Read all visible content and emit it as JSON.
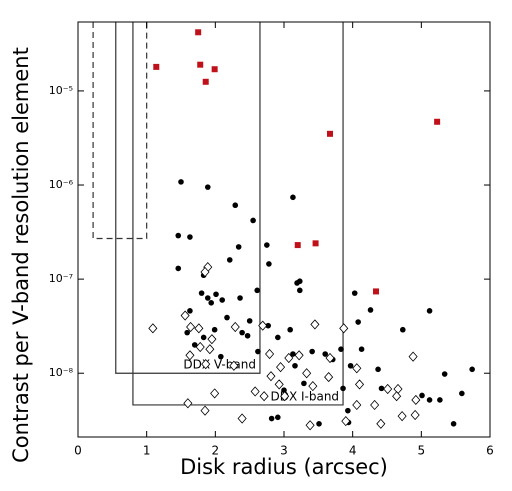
{
  "chart_data": {
    "type": "scatter",
    "xlabel": "Disk radius (arcsec)",
    "ylabel": "Contrast per V-band resolution element",
    "xlim": [
      0,
      6
    ],
    "xticks": [
      0,
      1,
      2,
      3,
      4,
      5,
      6
    ],
    "ylim": [
      2.1e-09,
      5.4e-05
    ],
    "yscale": "log",
    "yticks": [
      {
        "value": 1e-08,
        "label": "10⁻⁸"
      },
      {
        "value": 1e-07,
        "label": "10⁻⁷"
      },
      {
        "value": 1e-06,
        "label": "10⁻⁶"
      },
      {
        "value": 1e-05,
        "label": "10⁻⁵"
      }
    ],
    "regions": [
      {
        "x": [
          0.22,
          1.0
        ],
        "ybottom": 2.7e-07,
        "style": "dashed"
      },
      {
        "label": "DDX V-band",
        "x": [
          0.55,
          2.65
        ],
        "ybottom": 1e-08,
        "style": "solid"
      },
      {
        "label": "DDX I-band",
        "x": [
          0.8,
          3.86
        ],
        "ybottom": 4.6e-09,
        "style": "solid"
      }
    ],
    "series": [
      {
        "marker": "dot",
        "color": "#000000",
        "x": [
          1.5,
          1.89,
          3.13,
          2.29,
          2.55,
          1.46,
          1.63,
          2.34,
          2.75,
          1.46,
          2.21,
          2.78,
          1.83,
          3.19,
          3.23,
          4.03,
          1.8,
          2.01,
          1.89,
          2.1,
          2.36,
          2.61,
          3.23,
          1.63,
          1.94,
          5.12,
          4.26,
          2.17,
          2.5,
          2.77,
          1.99,
          2.39,
          4.08,
          1.83,
          2.91,
          2.47,
          3.09,
          4.73,
          1.59,
          1.7,
          2.62,
          4.13,
          3.41,
          3.6,
          3.83,
          3.13,
          2.08,
          3.71,
          3.16,
          3.97,
          4.37,
          5.74,
          5.34,
          3.29,
          3.86,
          5.01,
          3.0,
          5.59,
          4.42,
          5.27,
          5.12,
          3.93,
          2.82,
          2.91,
          3.51,
          5.47,
          3.94
        ],
        "values": [
          1.08e-06,
          9.5e-07,
          7.4e-07,
          6.1e-07,
          4.2e-07,
          2.9e-07,
          2.8e-07,
          2.2e-07,
          2.3e-07,
          1.3e-07,
          1.6e-07,
          1.45e-07,
          1.1e-07,
          9.1e-08,
          7.6e-08,
          7.1e-08,
          7.1e-08,
          6.9e-08,
          6.3e-08,
          6e-08,
          6.3e-08,
          7.6e-08,
          9.5e-08,
          4.6e-08,
          5.6e-08,
          4.6e-08,
          4.7e-08,
          3.9e-08,
          3.6e-08,
          3.2e-08,
          2.9e-08,
          2.7e-08,
          3.5e-08,
          2.4e-08,
          2.4e-08,
          2.5e-08,
          2.9e-08,
          2.9e-08,
          2.7e-08,
          2e-08,
          1.7e-08,
          1.8e-08,
          1.7e-08,
          1.6e-08,
          1.8e-08,
          1.6e-08,
          1.5e-08,
          1.4e-08,
          1.2e-08,
          1.2e-08,
          1.1e-08,
          1.1e-08,
          9.8e-09,
          7.8e-09,
          6.9e-09,
          5.8e-09,
          6.6e-09,
          6.1e-09,
          6.9e-09,
          5.2e-09,
          5.2e-09,
          4e-09,
          3.3e-09,
          3.4e-09,
          2.9e-09,
          2.9e-09,
          3e-09
        ]
      },
      {
        "marker": "diamond",
        "color": "#000000",
        "x": [
          1.89,
          1.85,
          1.56,
          1.64,
          1.09,
          1.76,
          2.29,
          2.69,
          3.45,
          3.87,
          1.95,
          1.78,
          1.92,
          1.63,
          2.79,
          3.22,
          3.07,
          3.67,
          4.88,
          2.27,
          1.86,
          2.95,
          4.06,
          3.65,
          2.81,
          3.33,
          2.93,
          1.99,
          2.58,
          3.42,
          4.1,
          4.66,
          4.51,
          2.71,
          3.01,
          4.64,
          4.92,
          1.85,
          1.6,
          4.06,
          4.32,
          4.72,
          2.39,
          3.38,
          3.9,
          4.41,
          4.91
        ],
        "values": [
          1.34e-07,
          1.19e-07,
          4.1e-08,
          3.1e-08,
          3e-08,
          3e-08,
          3.1e-08,
          3.2e-08,
          3.3e-08,
          3e-08,
          2.3e-08,
          1.9e-08,
          1.8e-08,
          1.55e-08,
          1.6e-08,
          1.55e-08,
          1.45e-08,
          1.45e-08,
          1.5e-08,
          1.2e-08,
          1.25e-08,
          1.16e-08,
          1.13e-08,
          9.1e-09,
          9.3e-09,
          1e-08,
          7.6e-09,
          6.1e-09,
          6.4e-09,
          7.3e-09,
          7.6e-09,
          6.8e-09,
          6.8e-09,
          5.7e-09,
          5.7e-09,
          5.7e-09,
          5.2e-09,
          4e-09,
          4.8e-09,
          4.6e-09,
          4.6e-09,
          3.5e-09,
          3.3e-09,
          2.8e-09,
          3.1e-09,
          2.9e-09,
          3.6e-09
        ]
      },
      {
        "marker": "square",
        "color": "#c0111a",
        "x": [
          1.75,
          1.14,
          1.78,
          1.99,
          1.86,
          3.67,
          5.23,
          3.2,
          3.46,
          4.34
        ],
        "values": [
          4.2e-05,
          1.8e-05,
          1.9e-05,
          1.7e-05,
          1.25e-05,
          3.5e-06,
          4.7e-06,
          2.3e-07,
          2.4e-07,
          7.4e-08
        ]
      }
    ]
  }
}
